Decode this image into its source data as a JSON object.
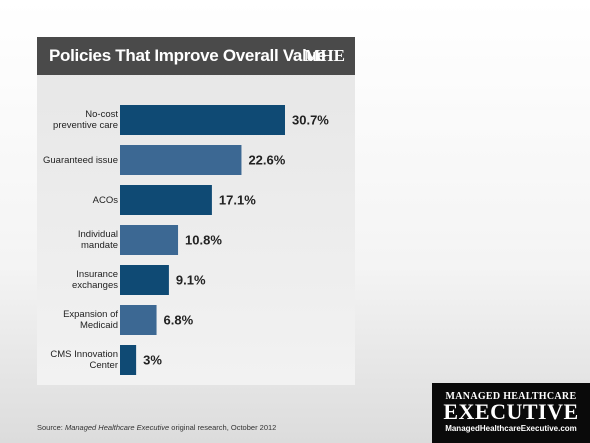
{
  "chart_data": {
    "type": "hbar",
    "title": "Policies That Improve Overall Value",
    "brand": "MHE",
    "categories": [
      "No-cost preventive care",
      "Guaranteed issue",
      "ACOs",
      "Individual mandate",
      "Insurance exchanges",
      "Expansion of Medicaid",
      "CMS Innovation Center"
    ],
    "values": [
      30.7,
      22.6,
      17.1,
      10.8,
      9.1,
      6.8,
      3
    ],
    "value_labels": [
      "30.7%",
      "22.6%",
      "17.1%",
      "10.8%",
      "9.1%",
      "6.8%",
      "3%"
    ],
    "colors": [
      "#0f4a74",
      "#3c6893",
      "#0f4a74",
      "#3c6893",
      "#0f4a74",
      "#3c6893",
      "#0f4a74"
    ]
  },
  "source": {
    "prefix": "Source:",
    "publication": "Managed Healthcare Executive",
    "suffix": "original research, October 2012"
  },
  "logo": {
    "line1": "MANAGED HEALTHCARE",
    "line2": "EXECUTIVE",
    "url": "ManagedHealthcareExecutive.com"
  }
}
